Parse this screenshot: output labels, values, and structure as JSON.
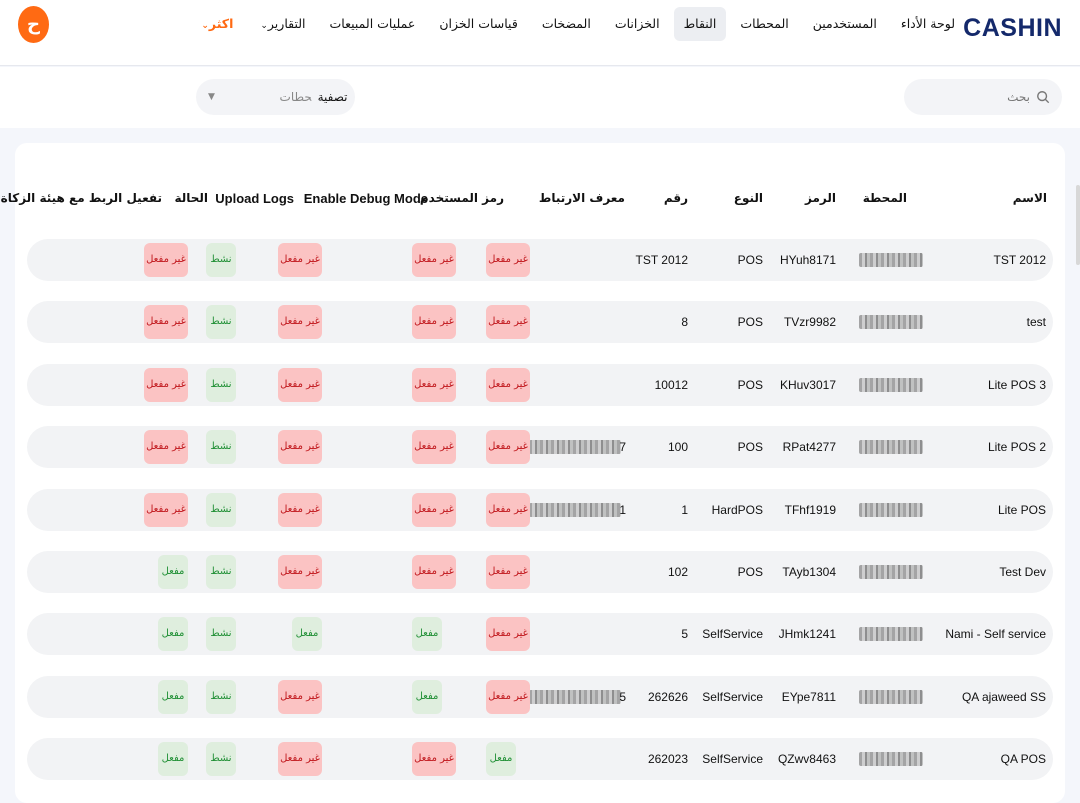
{
  "header": {
    "logo": "CASHIN",
    "nav": [
      {
        "label": "لوحة الأداء",
        "active": false
      },
      {
        "label": "المستخدمين",
        "active": false
      },
      {
        "label": "المحطات",
        "active": false
      },
      {
        "label": "النقاط",
        "active": true
      },
      {
        "label": "الخزانات",
        "active": false
      },
      {
        "label": "المضخات",
        "active": false
      },
      {
        "label": "قياسات الخزان",
        "active": false
      },
      {
        "label": "عمليات المبيعات",
        "active": false
      },
      {
        "label": "التقارير",
        "active": false,
        "caret": true
      },
      {
        "label": "اكثر",
        "active": false,
        "caret": true,
        "accent": true
      }
    ],
    "avatar_letter": "ح"
  },
  "filters": {
    "search_placeholder": "بحث",
    "station_placeholder": "المحطات",
    "filter_button": "تصفية"
  },
  "table": {
    "columns": {
      "name": "الاسم",
      "station": "المحطة",
      "code": "الرمز",
      "type": "النوع",
      "number": "رقم",
      "link_id": "معرف الارتباط",
      "user_code": "رمز المستخدم",
      "debug": "Enable Debug Mode",
      "upload": "Upload Logs",
      "status": "الحالة",
      "zakat": "تفعيل الربط مع هيئة الزكاة"
    },
    "labels": {
      "off": "غير مفعل",
      "on": "مفعل",
      "active": "نشط"
    },
    "rows": [
      {
        "name": "TST 2012",
        "code": "HYuh8171",
        "type": "POS",
        "number": "TST 2012",
        "link_id": "",
        "user_code": "off",
        "debug": "off",
        "upload": "off",
        "status": "نشط",
        "zakat": "off"
      },
      {
        "name": "test",
        "code": "TVzr9982",
        "type": "POS",
        "number": "8",
        "link_id": "",
        "user_code": "off",
        "debug": "off",
        "upload": "off",
        "status": "نشط",
        "zakat": "off"
      },
      {
        "name": "Lite POS 3",
        "code": "KHuv3017",
        "type": "POS",
        "number": "10012",
        "link_id": "",
        "user_code": "off",
        "debug": "off",
        "upload": "off",
        "status": "نشط",
        "zakat": "off"
      },
      {
        "name": "Lite POS 2",
        "code": "RPat4277",
        "type": "POS",
        "number": "100",
        "link_id": "7",
        "user_code": "off",
        "debug": "off",
        "upload": "off",
        "status": "نشط",
        "zakat": "off"
      },
      {
        "name": "Lite POS",
        "code": "TFhf1919",
        "type": "HardPOS",
        "number": "1",
        "link_id": "1",
        "user_code": "off",
        "debug": "off",
        "upload": "off",
        "status": "نشط",
        "zakat": "off"
      },
      {
        "name": "Test Dev",
        "code": "TAyb1304",
        "type": "POS",
        "number": "102",
        "link_id": "",
        "user_code": "off",
        "debug": "off",
        "upload": "off",
        "status": "نشط",
        "zakat": "on"
      },
      {
        "name": "Nami - Self service",
        "code": "JHmk1241",
        "type": "SelfService",
        "number": "5",
        "link_id": "",
        "user_code": "off",
        "debug": "on",
        "upload": "on",
        "status": "نشط",
        "zakat": "on"
      },
      {
        "name": "QA ajaweed SS",
        "code": "EYpe7811",
        "type": "SelfService",
        "number": "262626",
        "link_id": "5",
        "user_code": "off",
        "debug": "on",
        "upload": "off",
        "status": "نشط",
        "zakat": "on"
      },
      {
        "name": "QA POS",
        "code": "QZwv8463",
        "type": "SelfService",
        "number": "262023",
        "link_id": "",
        "user_code": "on",
        "debug": "off",
        "upload": "off",
        "status": "نشط",
        "zakat": "on"
      }
    ]
  }
}
